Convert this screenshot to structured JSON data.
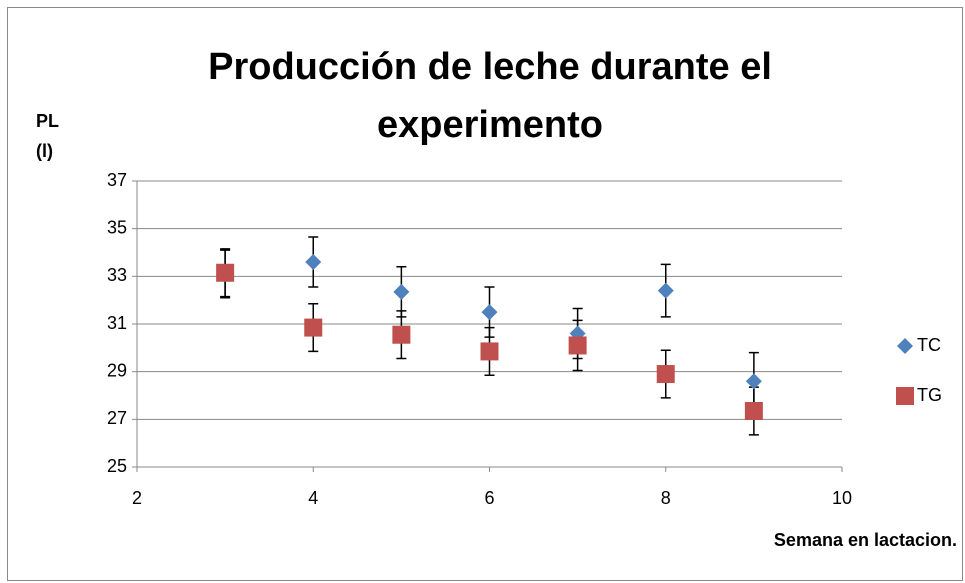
{
  "chart_data": {
    "type": "scatter",
    "title": "Producción de leche durante el experimento",
    "ylabel": "PL (l)",
    "xlabel": "Semana en lactacion.",
    "x": [
      3,
      4,
      5,
      6,
      7,
      8,
      9
    ],
    "series": [
      {
        "name": "TC",
        "color": "#4f81bd",
        "marker": "diamond",
        "values": [
          33.1,
          33.6,
          32.35,
          31.5,
          30.6,
          32.4,
          28.6
        ],
        "errors": [
          1.0,
          1.05,
          1.05,
          1.05,
          1.05,
          1.1,
          1.2
        ]
      },
      {
        "name": "TG",
        "color": "#c0504d",
        "marker": "square",
        "values": [
          33.15,
          30.85,
          30.55,
          29.85,
          30.1,
          28.9,
          27.35
        ],
        "errors": [
          1.0,
          1.0,
          1.0,
          1.0,
          1.05,
          1.0,
          1.0
        ]
      }
    ],
    "xlim": [
      2,
      10
    ],
    "xticks": [
      2,
      4,
      6,
      8,
      10
    ],
    "ylim": [
      25,
      37
    ],
    "yticks": [
      25,
      27,
      29,
      31,
      33,
      35,
      37
    ],
    "grid": true,
    "legend": "right"
  }
}
